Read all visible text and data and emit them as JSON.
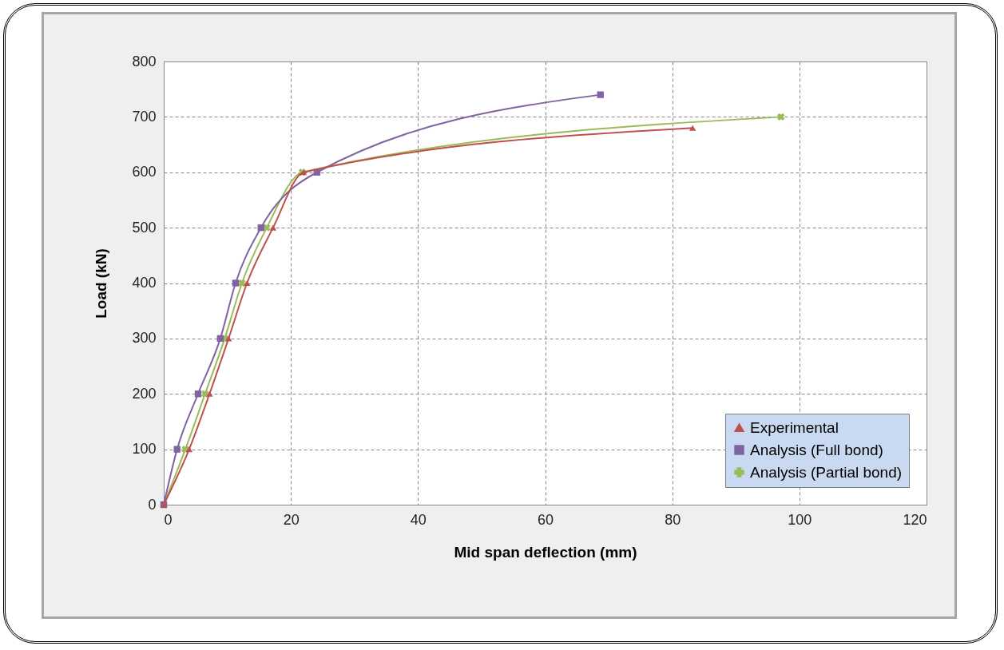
{
  "chart_data": {
    "type": "line",
    "xlabel": "Mid span deflection (mm)",
    "ylabel": "Load (kN)",
    "xlim": [
      0,
      120
    ],
    "xticks": [
      0,
      20,
      40,
      60,
      80,
      100,
      120
    ],
    "ylim": [
      0,
      800
    ],
    "yticks": [
      0,
      100,
      200,
      300,
      400,
      500,
      600,
      700,
      800
    ],
    "grid": true,
    "legend": "bottom right",
    "series": [
      {
        "name": "Experimental",
        "color": "#c0504d",
        "marker": "triangle",
        "x": [
          0,
          4.0,
          7.2,
          10.2,
          13.1,
          17.2,
          22.0,
          83.2
        ],
        "values": [
          0,
          100,
          200,
          300,
          400,
          500,
          600,
          680
        ]
      },
      {
        "name": "Analysis (Full bond)",
        "color": "#8064a2",
        "marker": "square",
        "x": [
          0,
          2.1,
          5.4,
          8.9,
          11.3,
          15.3,
          24.1,
          68.7
        ],
        "values": [
          0,
          100,
          200,
          300,
          400,
          500,
          600,
          740
        ]
      },
      {
        "name": "Analysis (Partial bond)",
        "color": "#9bbb59",
        "marker": "cross",
        "x": [
          0,
          3.4,
          6.5,
          9.6,
          12.3,
          16.2,
          21.8,
          97.1
        ],
        "values": [
          0,
          100,
          200,
          300,
          400,
          500,
          600,
          700
        ]
      }
    ]
  }
}
